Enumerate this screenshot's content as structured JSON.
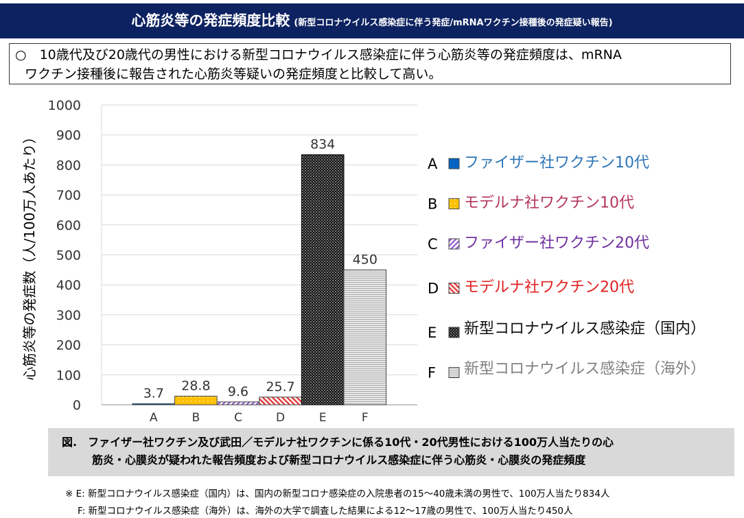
{
  "header": {
    "title": "心筋炎等の発症頻度比較",
    "subtitle": "(新型コロナウイルス感染症に伴う発症/mRNAワクチン接種後の発症疑い報告)"
  },
  "summary": {
    "line1": "○　10歳代及び20歳代の男性における新型コロナウイルス感染症に伴う心筋炎等の発症頻度は、mRNA",
    "line2": "ワクチン接種後に報告された心筋炎等疑いの発症頻度と比較して高い。"
  },
  "chart_data": {
    "type": "bar",
    "ylabel": "心筋炎等の発症数（人/100万人あたり）",
    "xlabel": "",
    "ylim": [
      0,
      1000
    ],
    "yticks": [
      "0",
      "100",
      "200",
      "300",
      "400",
      "500",
      "600",
      "700",
      "800",
      "900",
      "1000"
    ],
    "grid": true,
    "legend_placement": "right",
    "categories": [
      "A",
      "B",
      "C",
      "D",
      "E",
      "F"
    ],
    "values": [
      3.7,
      28.8,
      9.6,
      25.7,
      834,
      450
    ],
    "data_labels": [
      "3.7",
      "28.8",
      "9.6",
      "25.7",
      "834",
      "450"
    ],
    "legend": [
      {
        "key": "A",
        "label": "ファイザー社ワクチン10代",
        "fill": "#0563c1",
        "text_color": "#2e75b6",
        "pattern": "solid"
      },
      {
        "key": "B",
        "label": "モデルナ社ワクチン10代",
        "fill": "#ffc000",
        "text_color": "#b5365a",
        "pattern": "dots"
      },
      {
        "key": "C",
        "label": "ファイザー社ワクチン20代",
        "fill": "#9966cc",
        "text_color": "#7030a0",
        "pattern": "diagonal"
      },
      {
        "key": "D",
        "label": "モデルナ社ワクチン20代",
        "fill": "#e04040",
        "text_color": "#e02020",
        "pattern": "diagonal"
      },
      {
        "key": "E",
        "label": "新型コロナウイルス感染症（国内）",
        "fill": "#000000",
        "text_color": "#111111",
        "pattern": "checker"
      },
      {
        "key": "F",
        "label": "新型コロナウイルス感染症（海外）",
        "fill": "#c8c8c8",
        "text_color": "#808080",
        "pattern": "horizontal"
      }
    ]
  },
  "caption": {
    "line1": "図.　ファイザー社ワクチン及び武田／モデルナ社ワクチンに係る10代・20代男性における100万人当たりの心",
    "line2": "筋炎・心膜炎が疑われた報告頻度および新型コロナウイルス感染症に伴う心筋炎・心膜炎の発症頻度"
  },
  "notes": {
    "line1": "※ E: 新型コロナウイルス感染症（国内）は、国内の新型コロナ感染症の入院患者の15～40歳未満の男性で、100万人当たり834人",
    "line2": "F: 新型コロナウイルス感染症（海外）は、海外の大学で調査した結果による12～17歳の男性で、100万人当たり450人"
  }
}
